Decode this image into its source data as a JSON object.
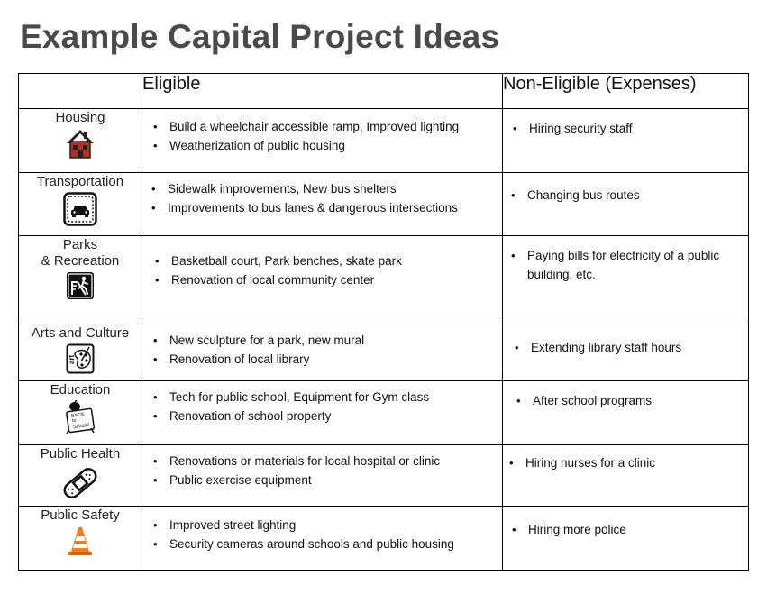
{
  "title": "Example Capital Project Ideas",
  "table": {
    "headers": [
      "",
      "Eligible",
      "Non-Eligible (Expenses)"
    ],
    "rows": [
      {
        "category": "Housing",
        "icon": "house-icon",
        "eligible": [
          "Build a wheelchair accessible ramp, Improved lighting",
          "Weatherization of public housing"
        ],
        "non_eligible": [
          "Hiring security staff"
        ]
      },
      {
        "category": "Transportation",
        "icon": "car-icon",
        "eligible": [
          "Sidewalk improvements, New bus shelters",
          "Improvements to bus lanes & dangerous intersections"
        ],
        "non_eligible": [
          "Changing bus routes"
        ]
      },
      {
        "category": "Parks\n& Recreation",
        "icon": "playground-icon",
        "eligible": [
          "Basketball court, Park benches, skate park",
          "Renovation of local community center"
        ],
        "non_eligible": [
          "Paying bills for electricity of a public building, etc."
        ]
      },
      {
        "category": "Arts and Culture",
        "icon": "art-palette-icon",
        "eligible": [
          "New sculpture for a park, new mural",
          "Renovation of local library"
        ],
        "non_eligible": [
          "Extending library staff hours"
        ]
      },
      {
        "category": "Education",
        "icon": "back-to-school-icon",
        "eligible": [
          "Tech for public school, Equipment for Gym class",
          "Renovation of school property"
        ],
        "non_eligible": [
          "After school programs"
        ],
        "icon_text": [
          "BACK",
          "to",
          "School!"
        ]
      },
      {
        "category": "Public Health",
        "icon": "bandage-icon",
        "eligible": [
          "Renovations or materials for local hospital or clinic",
          "Public exercise equipment"
        ],
        "non_eligible": [
          "Hiring nurses for a clinic"
        ]
      },
      {
        "category": "Public Safety",
        "icon": "traffic-cone-icon",
        "eligible": [
          "Improved street lighting",
          "Security cameras around schools and public housing"
        ],
        "non_eligible": [
          "Hiring more police"
        ]
      }
    ]
  },
  "colors": {
    "title": "#4a4a4a",
    "house": "#b5301f",
    "cone": "#f07d1a"
  }
}
